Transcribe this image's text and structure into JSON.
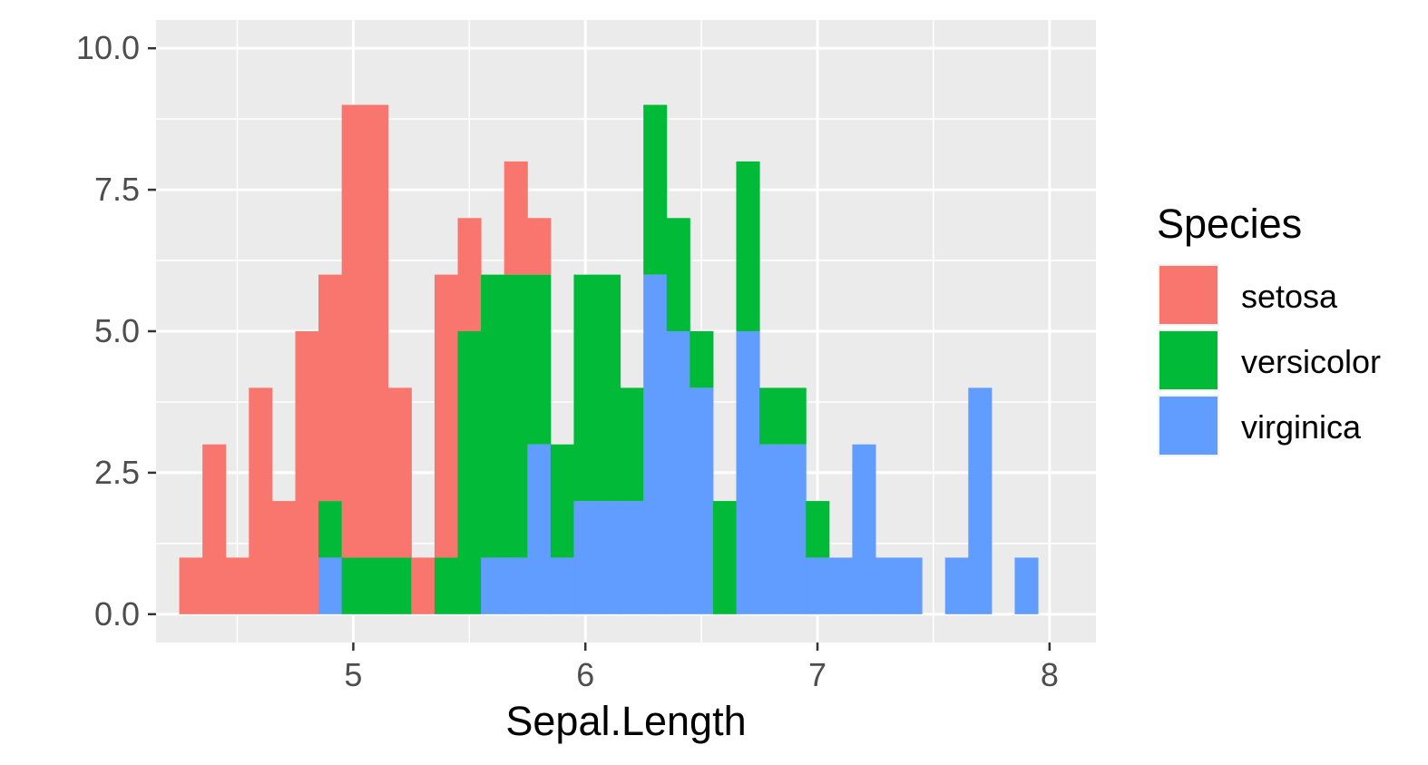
{
  "chart_data": {
    "type": "bar",
    "subtype": "stacked-histogram",
    "xlabel": "Sepal.Length",
    "ylabel": "",
    "xlim": [
      4.15,
      8.2
    ],
    "ylim": [
      -0.5,
      10.5
    ],
    "bin_width": 0.1,
    "x_ticks": [
      5,
      6,
      7,
      8
    ],
    "x_tick_labels": [
      "5",
      "6",
      "7",
      "8"
    ],
    "y_ticks": [
      0,
      2.5,
      5,
      7.5,
      10
    ],
    "y_tick_labels": [
      "0.0",
      "2.5",
      "5.0",
      "7.5",
      "10.0"
    ],
    "grid": true,
    "background_color": "#EBEBEB",
    "legend": {
      "title": "Species",
      "position": "right"
    },
    "bin_centers": [
      4.3,
      4.4,
      4.5,
      4.6,
      4.7,
      4.8,
      4.9,
      5.0,
      5.1,
      5.2,
      5.3,
      5.4,
      5.5,
      5.6,
      5.7,
      5.8,
      5.9,
      6.0,
      6.1,
      6.2,
      6.3,
      6.4,
      6.5,
      6.6,
      6.7,
      6.8,
      6.9,
      7.0,
      7.1,
      7.2,
      7.3,
      7.4,
      7.5,
      7.6,
      7.7,
      7.8,
      7.9
    ],
    "series": [
      {
        "name": "setosa",
        "color": "#F8766D",
        "values": [
          1,
          3,
          1,
          4,
          2,
          5,
          4,
          8,
          8,
          3,
          1,
          5,
          2,
          0,
          2,
          1,
          0,
          0,
          0,
          0,
          0,
          0,
          0,
          0,
          0,
          0,
          0,
          0,
          0,
          0,
          0,
          0,
          0,
          0,
          0,
          0,
          0
        ]
      },
      {
        "name": "versicolor",
        "color": "#00BA38",
        "values": [
          0,
          0,
          0,
          0,
          0,
          0,
          1,
          1,
          1,
          1,
          0,
          1,
          5,
          5,
          5,
          3,
          2,
          4,
          4,
          2,
          3,
          2,
          1,
          2,
          3,
          1,
          1,
          1,
          0,
          0,
          0,
          0,
          0,
          0,
          0,
          0,
          0
        ]
      },
      {
        "name": "virginica",
        "color": "#619CFF",
        "values": [
          0,
          0,
          0,
          0,
          0,
          0,
          1,
          0,
          0,
          0,
          0,
          0,
          0,
          1,
          1,
          3,
          1,
          2,
          2,
          2,
          6,
          5,
          4,
          0,
          5,
          3,
          3,
          1,
          1,
          3,
          1,
          1,
          0,
          1,
          4,
          0,
          1
        ]
      }
    ]
  }
}
